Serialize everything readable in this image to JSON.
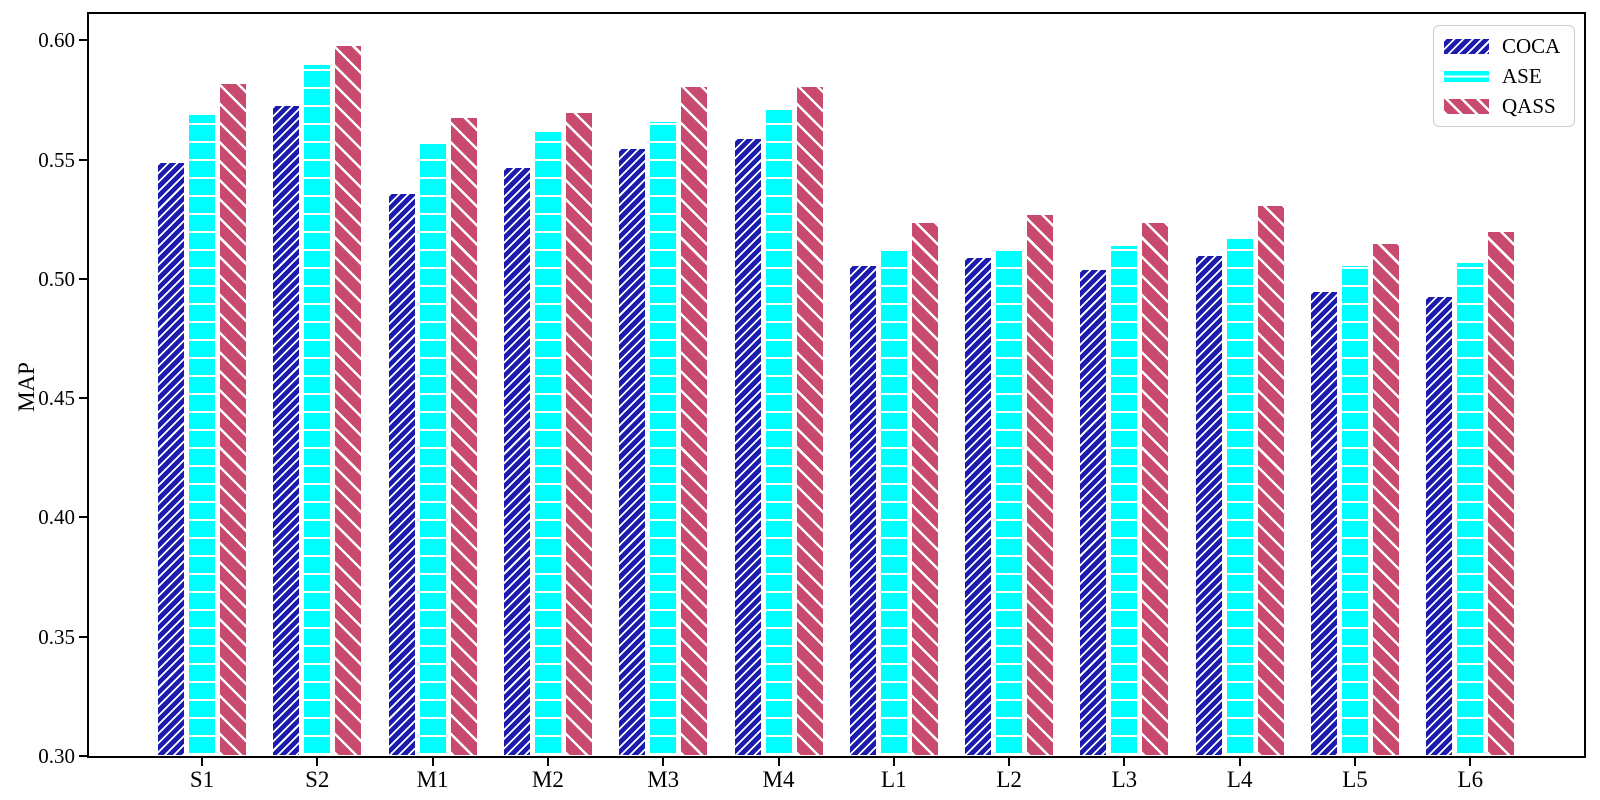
{
  "chart_data": {
    "type": "bar",
    "title": "",
    "xlabel": "",
    "ylabel": "MAP",
    "categories": [
      "S1",
      "S2",
      "M1",
      "M2",
      "M3",
      "M4",
      "L1",
      "L2",
      "L3",
      "L4",
      "L5",
      "L6"
    ],
    "series": [
      {
        "name": "COCA",
        "color": "#1b1bae",
        "hatch": "/",
        "values": [
          0.549,
          0.573,
          0.536,
          0.547,
          0.555,
          0.559,
          0.506,
          0.509,
          0.504,
          0.51,
          0.495,
          0.493
        ]
      },
      {
        "name": "ASE",
        "color": "#00ffff",
        "hatch": "-",
        "values": [
          0.569,
          0.59,
          0.557,
          0.562,
          0.566,
          0.571,
          0.512,
          0.513,
          0.514,
          0.517,
          0.506,
          0.507
        ]
      },
      {
        "name": "QASS",
        "color": "#c84a6e",
        "hatch": "\\",
        "values": [
          0.582,
          0.598,
          0.568,
          0.57,
          0.581,
          0.581,
          0.524,
          0.527,
          0.524,
          0.531,
          0.515,
          0.52
        ]
      }
    ],
    "ylim": [
      0.3,
      0.6
    ],
    "yticks": [
      0.3,
      0.35,
      0.4,
      0.45,
      0.5,
      0.55,
      0.6
    ],
    "legend": {
      "position": "upper right",
      "entries": [
        "COCA",
        "ASE",
        "QASS"
      ]
    },
    "grid": false,
    "bar_edge_color": "#ffffff"
  }
}
